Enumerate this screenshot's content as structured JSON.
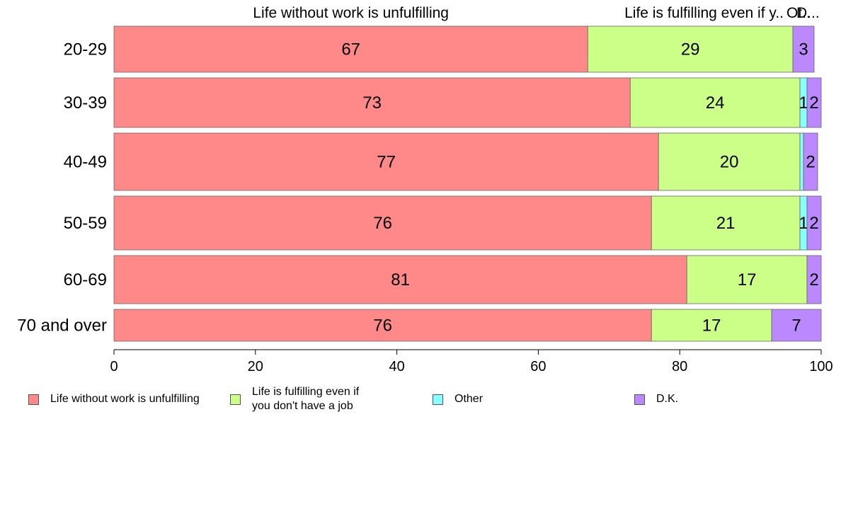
{
  "chart_data": {
    "type": "bar",
    "orientation": "horizontal",
    "stacked": true,
    "categories": [
      "20-29",
      "30-39",
      "40-49",
      "50-59",
      "60-69",
      "70 and over"
    ],
    "series": [
      {
        "name": "Life without work is unfulfilling",
        "color": "#ff8888",
        "values": [
          67,
          73,
          77,
          76,
          81,
          76
        ]
      },
      {
        "name": "Life is fulfilling even if you don't have a job",
        "color": "#ccff88",
        "values": [
          29,
          24,
          20,
          21,
          17,
          17
        ]
      },
      {
        "name": "Other",
        "color": "#88ffff",
        "values": [
          0,
          1,
          0.5,
          1,
          0,
          0
        ]
      },
      {
        "name": "D.K.",
        "color": "#bb88ff",
        "values": [
          3,
          2,
          2,
          2,
          2,
          7
        ]
      }
    ],
    "data_labels": [
      [
        "67",
        "29",
        "",
        "3"
      ],
      [
        "73",
        "24",
        "1",
        "2"
      ],
      [
        "77",
        "20",
        "",
        "2"
      ],
      [
        "76",
        "21",
        "1",
        "2"
      ],
      [
        "81",
        "17",
        "",
        "2"
      ],
      [
        "76",
        "17",
        "",
        "7"
      ]
    ],
    "top_labels": [
      "Life without work is unfulfilling",
      "Life is fulfilling even if y..",
      "Ot..",
      "D..."
    ],
    "xlim": [
      0,
      100
    ],
    "xticks": [
      0,
      20,
      40,
      60,
      80,
      100
    ],
    "grid": false,
    "legend_position": "bottom",
    "legend": [
      {
        "label": "Life without work is unfulfilling",
        "color": "#ff8888"
      },
      {
        "label": "Life is fulfilling even if\nyou don't have a job",
        "color": "#ccff88"
      },
      {
        "label": "Other",
        "color": "#88ffff"
      },
      {
        "label": "D.K.",
        "color": "#bb88ff"
      }
    ]
  }
}
